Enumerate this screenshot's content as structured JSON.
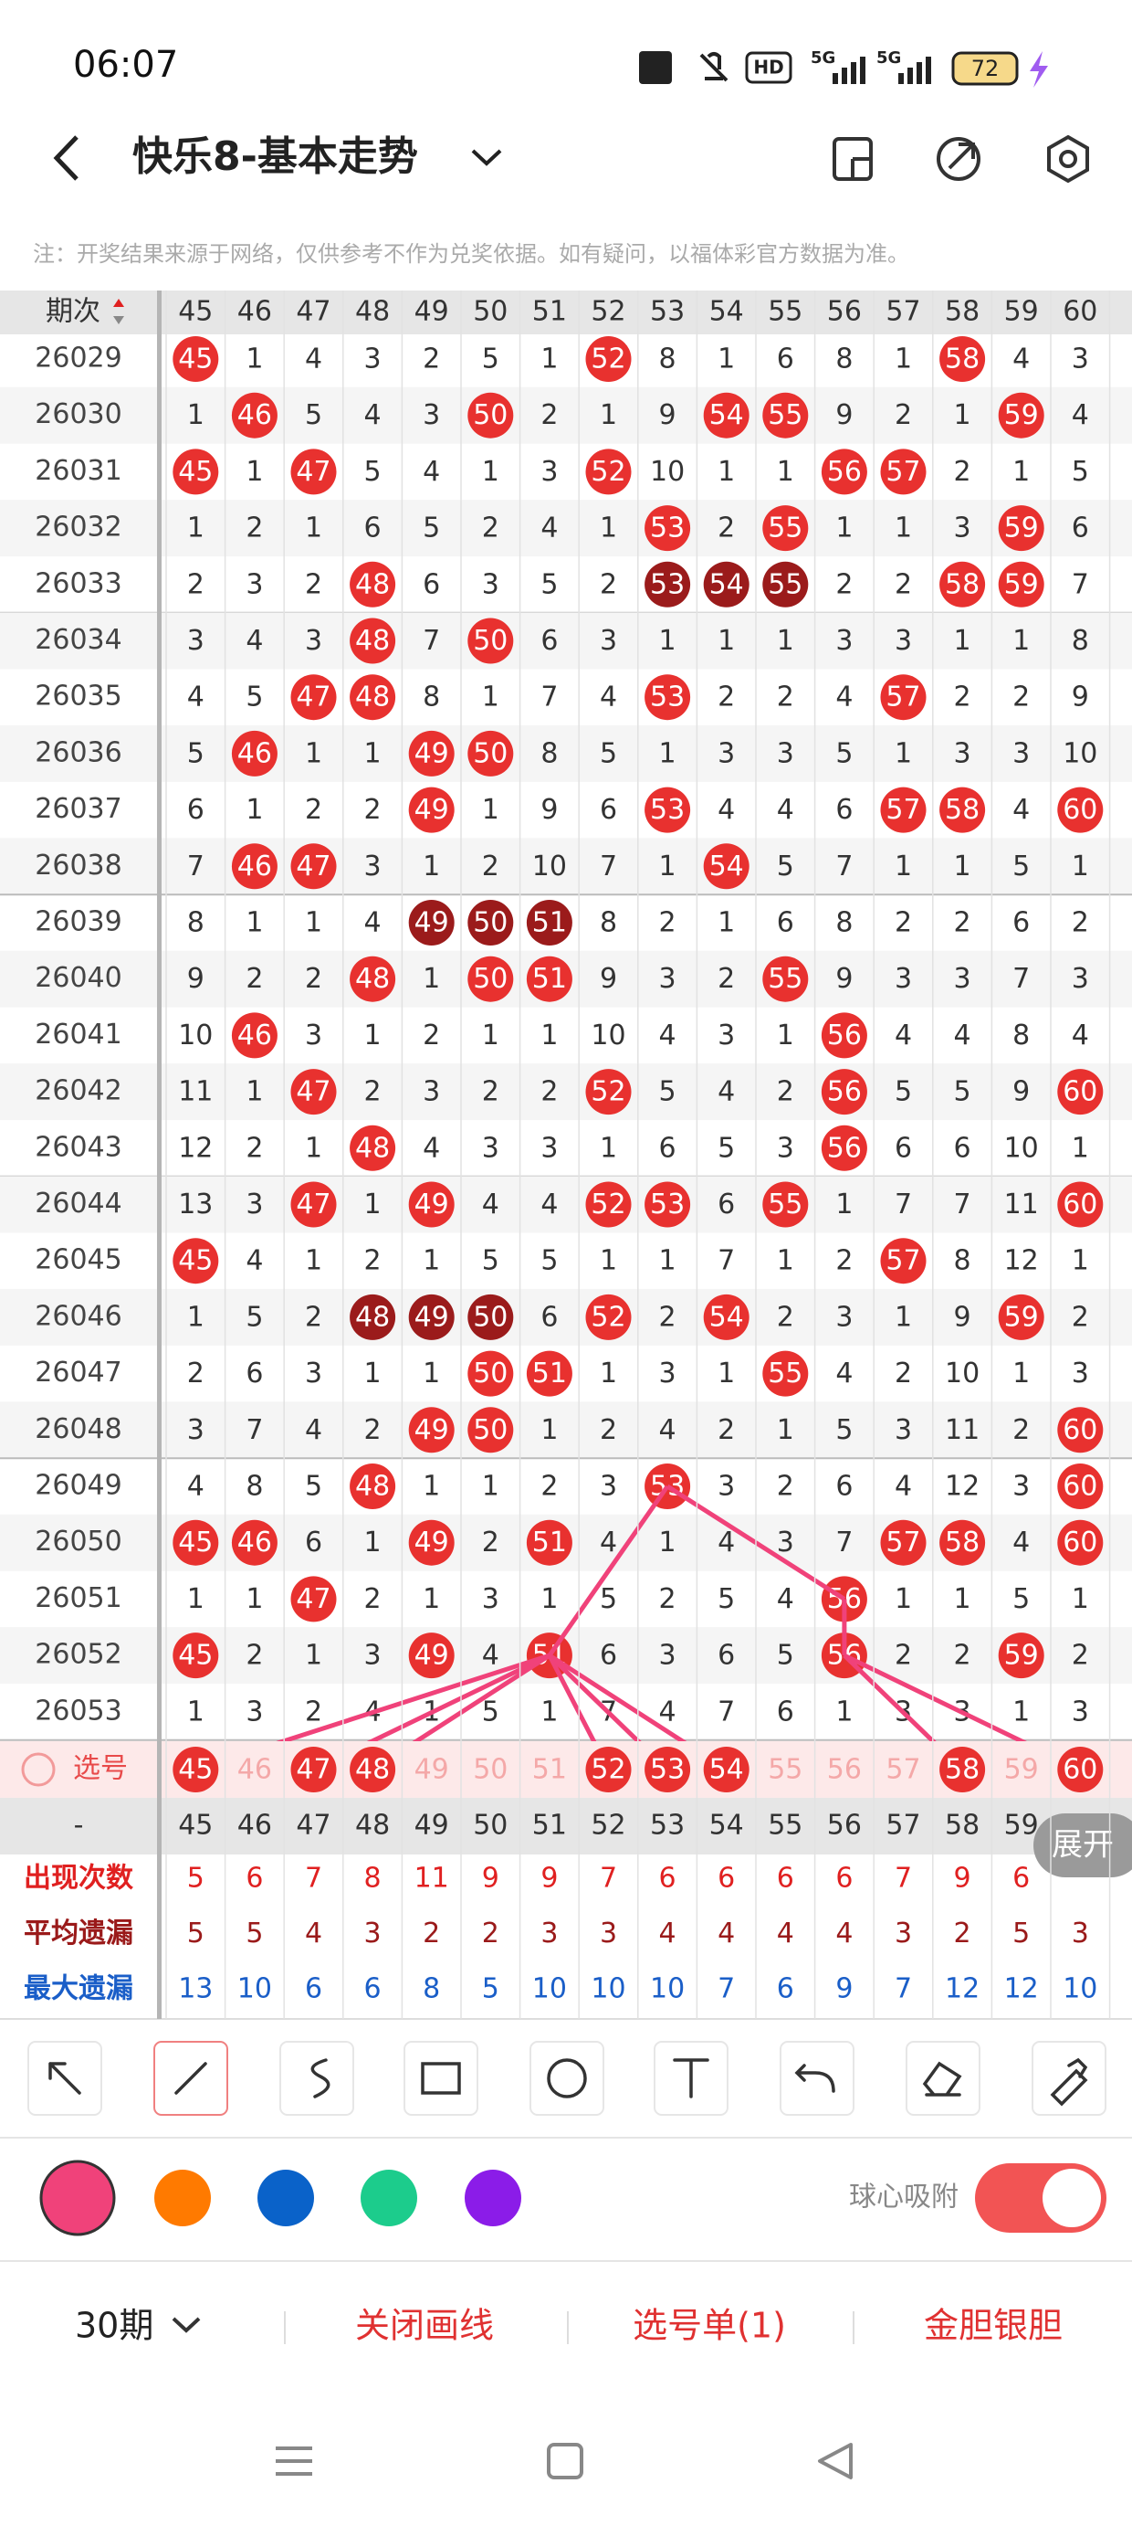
{
  "status_bar": {
    "time": "06:07",
    "hd": "HD",
    "net": [
      "5G",
      "5G"
    ],
    "battery": "72"
  },
  "header": {
    "title": "快乐8-基本走势"
  },
  "note": "注：开奖结果来源于网络，仅供参考不作为兑奖依据。如有疑问，以福体彩官方数据为准。",
  "table": {
    "period_header": "期次",
    "columns": [
      45,
      46,
      47,
      48,
      49,
      50,
      51,
      52,
      53,
      54,
      55,
      56,
      57,
      58,
      59,
      60
    ],
    "rows": [
      {
        "period": "26029",
        "cells": [
          45,
          1,
          4,
          3,
          2,
          5,
          1,
          52,
          8,
          1,
          6,
          8,
          1,
          58,
          4,
          3
        ]
      },
      {
        "period": "26030",
        "cells": [
          1,
          46,
          5,
          4,
          3,
          50,
          2,
          1,
          9,
          54,
          55,
          9,
          2,
          1,
          59,
          4
        ]
      },
      {
        "period": "26031",
        "cells": [
          45,
          1,
          47,
          5,
          4,
          1,
          3,
          52,
          10,
          1,
          1,
          56,
          57,
          2,
          1,
          5
        ]
      },
      {
        "period": "26032",
        "cells": [
          1,
          2,
          1,
          6,
          5,
          2,
          4,
          1,
          53,
          2,
          55,
          1,
          1,
          3,
          59,
          6
        ]
      },
      {
        "period": "26033",
        "cells": [
          2,
          3,
          2,
          48,
          6,
          3,
          5,
          2,
          53,
          54,
          55,
          2,
          2,
          58,
          59,
          7
        ],
        "dark": [
          53,
          54,
          55
        ]
      },
      {
        "period": "26034",
        "cells": [
          3,
          4,
          3,
          48,
          7,
          50,
          6,
          3,
          1,
          1,
          1,
          3,
          3,
          1,
          1,
          8
        ]
      },
      {
        "period": "26035",
        "cells": [
          4,
          5,
          47,
          48,
          8,
          1,
          7,
          4,
          53,
          2,
          2,
          4,
          57,
          2,
          2,
          9
        ]
      },
      {
        "period": "26036",
        "cells": [
          5,
          46,
          1,
          1,
          49,
          50,
          8,
          5,
          1,
          3,
          3,
          5,
          1,
          3,
          3,
          10
        ]
      },
      {
        "period": "26037",
        "cells": [
          6,
          1,
          2,
          2,
          49,
          1,
          9,
          6,
          53,
          4,
          4,
          6,
          57,
          58,
          4,
          60
        ]
      },
      {
        "period": "26038",
        "cells": [
          7,
          46,
          47,
          3,
          1,
          2,
          10,
          7,
          1,
          54,
          5,
          7,
          1,
          1,
          5,
          1
        ]
      },
      {
        "period": "26039",
        "cells": [
          8,
          1,
          1,
          4,
          49,
          50,
          51,
          8,
          2,
          1,
          6,
          8,
          2,
          2,
          6,
          2
        ],
        "dark": [
          49,
          50,
          51
        ]
      },
      {
        "period": "26040",
        "cells": [
          9,
          2,
          2,
          48,
          1,
          50,
          51,
          9,
          3,
          2,
          55,
          9,
          3,
          3,
          7,
          3
        ]
      },
      {
        "period": "26041",
        "cells": [
          10,
          46,
          3,
          1,
          2,
          1,
          1,
          10,
          4,
          3,
          1,
          56,
          4,
          4,
          8,
          4
        ]
      },
      {
        "period": "26042",
        "cells": [
          11,
          1,
          47,
          2,
          3,
          2,
          2,
          52,
          5,
          4,
          2,
          56,
          5,
          5,
          9,
          60
        ]
      },
      {
        "period": "26043",
        "cells": [
          12,
          2,
          1,
          48,
          4,
          3,
          3,
          1,
          6,
          5,
          3,
          56,
          6,
          6,
          10,
          1
        ]
      },
      {
        "period": "26044",
        "cells": [
          13,
          3,
          47,
          1,
          49,
          4,
          4,
          52,
          53,
          6,
          55,
          1,
          7,
          7,
          11,
          60
        ]
      },
      {
        "period": "26045",
        "cells": [
          45,
          4,
          1,
          2,
          1,
          5,
          5,
          1,
          1,
          7,
          1,
          2,
          57,
          8,
          12,
          1
        ]
      },
      {
        "period": "26046",
        "cells": [
          1,
          5,
          2,
          48,
          49,
          50,
          6,
          52,
          2,
          54,
          2,
          3,
          1,
          9,
          59,
          2
        ],
        "dark": [
          48,
          49,
          50
        ]
      },
      {
        "period": "26047",
        "cells": [
          2,
          6,
          3,
          1,
          1,
          50,
          51,
          1,
          3,
          1,
          55,
          4,
          2,
          10,
          1,
          3
        ]
      },
      {
        "period": "26048",
        "cells": [
          3,
          7,
          4,
          2,
          49,
          50,
          1,
          2,
          4,
          2,
          1,
          5,
          3,
          11,
          2,
          60
        ]
      },
      {
        "period": "26049",
        "cells": [
          4,
          8,
          5,
          48,
          1,
          1,
          2,
          3,
          53,
          3,
          2,
          6,
          4,
          12,
          3,
          60
        ]
      },
      {
        "period": "26050",
        "cells": [
          45,
          46,
          6,
          1,
          49,
          2,
          51,
          4,
          1,
          4,
          3,
          7,
          57,
          58,
          4,
          60
        ]
      },
      {
        "period": "26051",
        "cells": [
          1,
          1,
          47,
          2,
          1,
          3,
          1,
          5,
          2,
          5,
          4,
          56,
          1,
          1,
          5,
          1
        ]
      },
      {
        "period": "26052",
        "cells": [
          45,
          2,
          1,
          3,
          49,
          4,
          51,
          6,
          3,
          6,
          5,
          56,
          2,
          2,
          59,
          2
        ]
      },
      {
        "period": "26053",
        "cells": [
          1,
          3,
          2,
          4,
          1,
          5,
          1,
          7,
          4,
          7,
          6,
          1,
          3,
          3,
          1,
          3
        ]
      }
    ]
  },
  "select_row": {
    "label": "选号",
    "selected": [
      45,
      47,
      48,
      52,
      53,
      54,
      58,
      60
    ]
  },
  "summary": {
    "header_label": "-",
    "expand": "展开",
    "rows": [
      {
        "label": "出现次数",
        "color": "#e02020",
        "values": [
          5,
          6,
          7,
          8,
          11,
          9,
          9,
          7,
          6,
          6,
          6,
          6,
          7,
          9,
          6,
          null
        ]
      },
      {
        "label": "平均遗漏",
        "color": "#9a1a1a",
        "values": [
          5,
          5,
          4,
          3,
          2,
          2,
          3,
          3,
          4,
          4,
          4,
          4,
          3,
          2,
          5,
          3
        ]
      },
      {
        "label": "最大遗漏",
        "color": "#1a5ec8",
        "values": [
          13,
          10,
          6,
          6,
          8,
          5,
          10,
          10,
          10,
          7,
          6,
          9,
          7,
          12,
          12,
          10
        ]
      }
    ]
  },
  "toolbar": {
    "colors": [
      "#f0427a",
      "#ff7a00",
      "#0a62c9",
      "#1ccc8c",
      "#8b1ce8"
    ],
    "snap_label": "球心吸附",
    "snap_on": true
  },
  "bottom_bar": {
    "period_select": "30期",
    "close_lines": "关闭画线",
    "pick_list": "选号单(1)",
    "gold_silver": "金胆银胆"
  }
}
